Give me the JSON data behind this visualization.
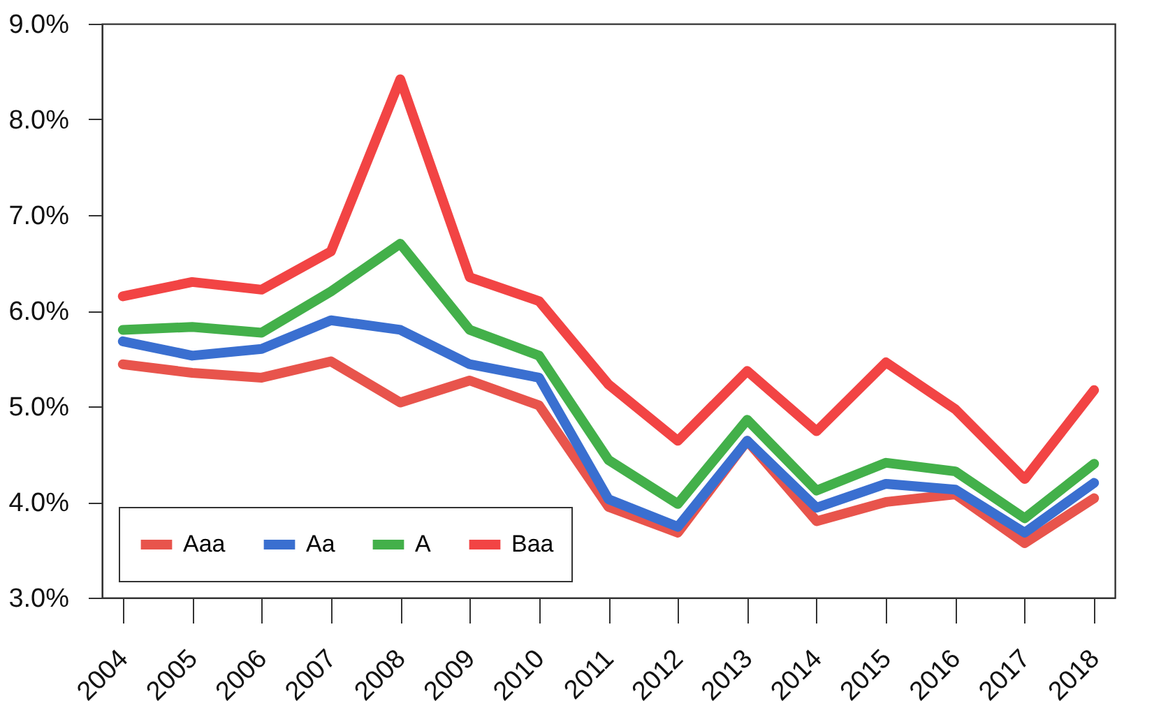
{
  "chart_data": {
    "type": "line",
    "categories": [
      "2004",
      "2005",
      "2006",
      "2007",
      "2008",
      "2009",
      "2010",
      "2011",
      "2012",
      "2013",
      "2014",
      "2015",
      "2016",
      "2017",
      "2018"
    ],
    "series": [
      {
        "name": "Aaa",
        "color": "#e8544c",
        "values": [
          5.44,
          5.35,
          5.3,
          5.47,
          5.04,
          5.27,
          5.01,
          3.95,
          3.68,
          4.64,
          3.8,
          4.0,
          4.08,
          3.57,
          4.04
        ]
      },
      {
        "name": "Aa",
        "color": "#3a6fd0",
        "values": [
          5.68,
          5.53,
          5.6,
          5.9,
          5.8,
          5.44,
          5.3,
          4.03,
          3.74,
          4.64,
          3.94,
          4.19,
          4.13,
          3.68,
          4.2
        ]
      },
      {
        "name": "A",
        "color": "#43b04a",
        "values": [
          5.8,
          5.83,
          5.77,
          6.2,
          6.7,
          5.8,
          5.53,
          4.44,
          3.98,
          4.86,
          4.12,
          4.41,
          4.32,
          3.83,
          4.4
        ]
      },
      {
        "name": "Baa",
        "color": "#f24444",
        "values": [
          6.15,
          6.3,
          6.22,
          6.62,
          8.42,
          6.35,
          6.1,
          5.23,
          4.64,
          5.37,
          4.74,
          5.46,
          4.97,
          4.24,
          5.17
        ]
      }
    ],
    "ylim": [
      3,
      9
    ],
    "yticks": [
      {
        "value": 3,
        "label": "3.0%"
      },
      {
        "value": 4,
        "label": "4.0%"
      },
      {
        "value": 5,
        "label": "5.0%"
      },
      {
        "value": 6,
        "label": "6.0%"
      },
      {
        "value": 7,
        "label": "7.0%"
      },
      {
        "value": 8,
        "label": "8.0%"
      },
      {
        "value": 9,
        "label": "9.0%"
      }
    ],
    "legend": "bottom left",
    "grid": false,
    "marker": "none",
    "line_style": "solid"
  }
}
